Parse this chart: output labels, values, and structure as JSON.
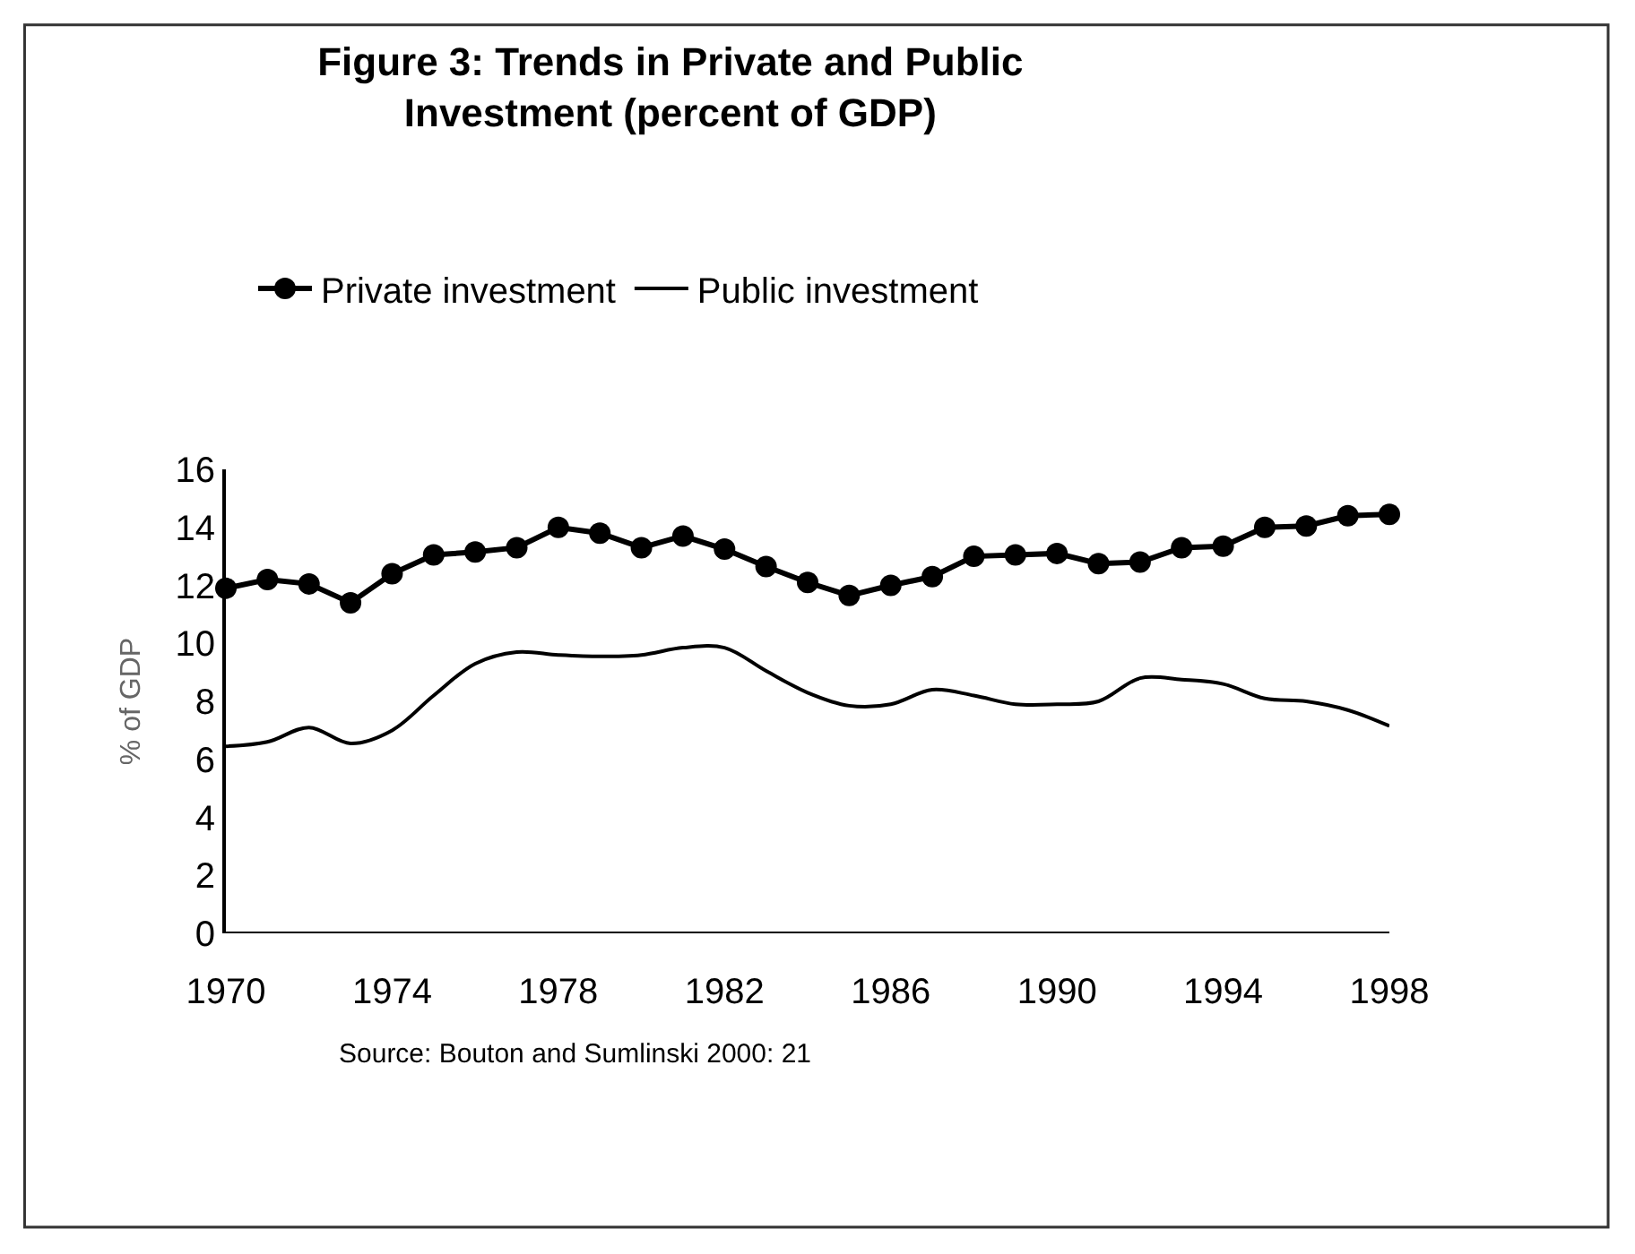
{
  "chart_data": {
    "type": "line",
    "title": "Figure 3: Trends in Private and Public\nInvestment (percent of GDP)",
    "ylabel": "% of GDP",
    "annotations": [
      "Source: Bouton and Sumlinski 2000: 21"
    ],
    "x": [
      1970,
      1971,
      1972,
      1973,
      1974,
      1975,
      1976,
      1977,
      1978,
      1979,
      1980,
      1981,
      1982,
      1983,
      1984,
      1985,
      1986,
      1987,
      1988,
      1989,
      1990,
      1991,
      1992,
      1993,
      1994,
      1995,
      1996,
      1997,
      1998
    ],
    "series": [
      {
        "name": "Private investment",
        "color": "#000000",
        "marker": "circle",
        "values": [
          11.9,
          12.2,
          12.05,
          11.4,
          12.4,
          13.05,
          13.15,
          13.3,
          14.0,
          13.8,
          13.3,
          13.7,
          13.25,
          12.65,
          12.1,
          11.65,
          12.0,
          12.3,
          13.0,
          13.05,
          13.1,
          12.75,
          12.8,
          13.3,
          13.35,
          14.0,
          14.05,
          14.4,
          14.45
        ]
      },
      {
        "name": "Public investment",
        "color": "#000000",
        "marker": "none",
        "values": [
          6.45,
          6.6,
          7.1,
          6.55,
          7.0,
          8.2,
          9.3,
          9.7,
          9.6,
          9.55,
          9.6,
          9.85,
          9.85,
          9.05,
          8.3,
          7.85,
          7.9,
          8.4,
          8.2,
          7.9,
          7.9,
          8.0,
          8.8,
          8.75,
          8.6,
          8.1,
          8.0,
          7.7,
          7.15
        ]
      }
    ],
    "xlim": [
      1970,
      1998
    ],
    "xticks": [
      1970,
      1974,
      1978,
      1982,
      1986,
      1990,
      1994,
      1998
    ],
    "ylim": [
      0,
      16
    ],
    "yticks": [
      0,
      2,
      4,
      6,
      8,
      10,
      12,
      14,
      16
    ],
    "legend": "top",
    "line_style": "solid"
  }
}
